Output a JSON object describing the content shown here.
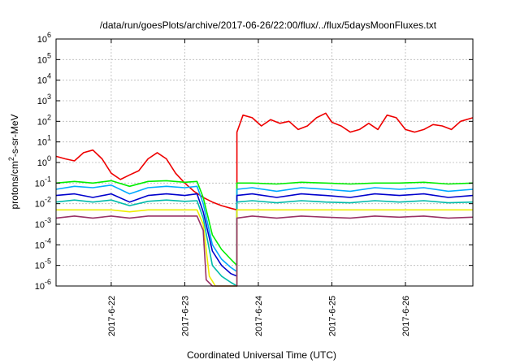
{
  "chart_data": {
    "type": "line",
    "title": "/data/run/goesPlots/archive/2017-06-26/22:00/flux/../flux/5daysMoonFluxes.txt",
    "xlabel": "Coordinated Universal Time (UTC)",
    "ylabel": "protons/cm²-s-sr-MeV",
    "ylabel_parts": {
      "pre": "protons/cm",
      "sup": "2",
      "post": "-s-sr-MeV"
    },
    "yscale": "log",
    "ylim": [
      1e-06,
      1000000.0
    ],
    "yticks": [
      {
        "base": "10",
        "exp": "-6"
      },
      {
        "base": "10",
        "exp": "-5"
      },
      {
        "base": "10",
        "exp": "-4"
      },
      {
        "base": "10",
        "exp": "-3"
      },
      {
        "base": "10",
        "exp": "-2"
      },
      {
        "base": "10",
        "exp": "-1"
      },
      {
        "base": "10",
        "exp": "0"
      },
      {
        "base": "10",
        "exp": "1"
      },
      {
        "base": "10",
        "exp": "2"
      },
      {
        "base": "10",
        "exp": "3"
      },
      {
        "base": "10",
        "exp": "4"
      },
      {
        "base": "10",
        "exp": "5"
      },
      {
        "base": "10",
        "exp": "6"
      }
    ],
    "xlim": [
      "2017-06-21 06:00",
      "2017-06-26 22:00"
    ],
    "xticks": [
      "2017-6-22",
      "2017-6-23",
      "2017-6-24",
      "2017-6-25",
      "2017-6-26"
    ],
    "grid": true,
    "gap": [
      "2017-06-23 17:00",
      "2017-06-23 17:00"
    ],
    "series": [
      {
        "color": "#ee0000",
        "x": [
          "2017-06-21 06:00",
          "2017-06-21 09:00",
          "2017-06-21 12:00",
          "2017-06-21 15:00",
          "2017-06-21 18:00",
          "2017-06-21 21:00",
          "2017-06-22 00:00",
          "2017-06-22 03:00",
          "2017-06-22 06:00",
          "2017-06-22 09:00",
          "2017-06-22 12:00",
          "2017-06-22 15:00",
          "2017-06-22 18:00",
          "2017-06-22 21:00",
          "2017-06-23 00:00",
          "2017-06-23 03:00",
          "2017-06-23 06:00",
          "2017-06-23 09:00",
          "2017-06-23 12:00",
          "2017-06-23 15:00",
          "2017-06-23 17:00",
          "2017-06-23 17:00",
          "2017-06-23 19:00",
          "2017-06-23 22:00",
          "2017-06-24 01:00",
          "2017-06-24 04:00",
          "2017-06-24 07:00",
          "2017-06-24 10:00",
          "2017-06-24 13:00",
          "2017-06-24 16:00",
          "2017-06-24 19:00",
          "2017-06-24 22:00",
          "2017-06-25 00:00",
          "2017-06-25 03:00",
          "2017-06-25 06:00",
          "2017-06-25 09:00",
          "2017-06-25 12:00",
          "2017-06-25 15:00",
          "2017-06-25 18:00",
          "2017-06-25 21:00",
          "2017-06-26 00:00",
          "2017-06-26 03:00",
          "2017-06-26 06:00",
          "2017-06-26 09:00",
          "2017-06-26 12:00",
          "2017-06-26 15:00",
          "2017-06-26 18:00",
          "2017-06-26 22:00"
        ],
        "values": [
          2,
          1.5,
          1.2,
          3,
          4,
          1.5,
          0.3,
          0.15,
          0.25,
          0.4,
          1.5,
          3,
          1.5,
          0.3,
          0.1,
          0.04,
          0.02,
          0.012,
          0.008,
          0.006,
          0.005,
          30,
          200,
          150,
          60,
          120,
          80,
          100,
          40,
          60,
          150,
          250,
          90,
          60,
          30,
          40,
          80,
          40,
          200,
          150,
          40,
          30,
          40,
          70,
          60,
          40,
          100,
          150
        ]
      },
      {
        "color": "#00ee00",
        "x": [
          "2017-06-21 06:00",
          "2017-06-21 12:00",
          "2017-06-21 18:00",
          "2017-06-22 00:00",
          "2017-06-22 06:00",
          "2017-06-22 12:00",
          "2017-06-22 18:00",
          "2017-06-23 00:00",
          "2017-06-23 04:00",
          "2017-06-23 06:00",
          "2017-06-23 09:00",
          "2017-06-23 12:00",
          "2017-06-23 15:00",
          "2017-06-23 17:00",
          "2017-06-23 17:00",
          "2017-06-23 22:00",
          "2017-06-24 06:00",
          "2017-06-24 14:00",
          "2017-06-24 22:00",
          "2017-06-25 06:00",
          "2017-06-25 14:00",
          "2017-06-25 22:00",
          "2017-06-26 06:00",
          "2017-06-26 14:00",
          "2017-06-26 22:00"
        ],
        "values": [
          0.1,
          0.12,
          0.1,
          0.13,
          0.07,
          0.12,
          0.13,
          0.11,
          0.12,
          0.02,
          0.0003,
          6e-05,
          2e-05,
          1e-05,
          0.1,
          0.1,
          0.09,
          0.11,
          0.1,
          0.09,
          0.1,
          0.1,
          0.11,
          0.09,
          0.1
        ]
      },
      {
        "color": "#00aaff",
        "x": [
          "2017-06-21 06:00",
          "2017-06-21 12:00",
          "2017-06-21 18:00",
          "2017-06-22 00:00",
          "2017-06-22 06:00",
          "2017-06-22 12:00",
          "2017-06-22 18:00",
          "2017-06-23 00:00",
          "2017-06-23 04:00",
          "2017-06-23 06:00",
          "2017-06-23 09:00",
          "2017-06-23 12:00",
          "2017-06-23 15:00",
          "2017-06-23 17:00",
          "2017-06-23 17:00",
          "2017-06-23 22:00",
          "2017-06-24 06:00",
          "2017-06-24 14:00",
          "2017-06-24 22:00",
          "2017-06-25 06:00",
          "2017-06-25 14:00",
          "2017-06-25 22:00",
          "2017-06-26 06:00",
          "2017-06-26 14:00",
          "2017-06-26 22:00"
        ],
        "values": [
          0.05,
          0.07,
          0.06,
          0.08,
          0.03,
          0.06,
          0.07,
          0.06,
          0.07,
          0.01,
          0.0001,
          2e-05,
          8e-06,
          5e-06,
          0.05,
          0.06,
          0.04,
          0.06,
          0.05,
          0.04,
          0.06,
          0.05,
          0.06,
          0.04,
          0.05
        ]
      },
      {
        "color": "#0000cc",
        "x": [
          "2017-06-21 06:00",
          "2017-06-21 12:00",
          "2017-06-21 18:00",
          "2017-06-22 00:00",
          "2017-06-22 06:00",
          "2017-06-22 12:00",
          "2017-06-22 18:00",
          "2017-06-23 00:00",
          "2017-06-23 04:00",
          "2017-06-23 06:00",
          "2017-06-23 09:00",
          "2017-06-23 12:00",
          "2017-06-23 15:00",
          "2017-06-23 17:00",
          "2017-06-23 17:00",
          "2017-06-23 22:00",
          "2017-06-24 06:00",
          "2017-06-24 14:00",
          "2017-06-24 22:00",
          "2017-06-25 06:00",
          "2017-06-25 14:00",
          "2017-06-25 22:00",
          "2017-06-26 06:00",
          "2017-06-26 14:00",
          "2017-06-26 22:00"
        ],
        "values": [
          0.025,
          0.03,
          0.02,
          0.03,
          0.012,
          0.025,
          0.03,
          0.025,
          0.03,
          0.004,
          5e-05,
          1e-05,
          4e-06,
          3e-06,
          0.025,
          0.03,
          0.02,
          0.03,
          0.025,
          0.02,
          0.03,
          0.025,
          0.03,
          0.02,
          0.025
        ]
      },
      {
        "color": "#00bbaa",
        "x": [
          "2017-06-21 06:00",
          "2017-06-21 12:00",
          "2017-06-21 18:00",
          "2017-06-22 00:00",
          "2017-06-22 06:00",
          "2017-06-22 12:00",
          "2017-06-22 18:00",
          "2017-06-23 00:00",
          "2017-06-23 04:00",
          "2017-06-23 06:00",
          "2017-06-23 09:00",
          "2017-06-23 12:00",
          "2017-06-23 15:00",
          "2017-06-23 17:00",
          "2017-06-23 17:00",
          "2017-06-23 22:00",
          "2017-06-24 06:00",
          "2017-06-24 14:00",
          "2017-06-24 22:00",
          "2017-06-25 06:00",
          "2017-06-25 14:00",
          "2017-06-25 22:00",
          "2017-06-26 06:00",
          "2017-06-26 14:00",
          "2017-06-26 22:00"
        ],
        "values": [
          0.012,
          0.015,
          0.012,
          0.015,
          0.008,
          0.013,
          0.015,
          0.013,
          0.014,
          0.002,
          1e-05,
          3e-06,
          1.5e-06,
          1e-06,
          0.012,
          0.014,
          0.011,
          0.014,
          0.012,
          0.011,
          0.014,
          0.012,
          0.014,
          0.011,
          0.012
        ]
      },
      {
        "color": "#eeee00",
        "x": [
          "2017-06-21 06:00",
          "2017-06-21 12:00",
          "2017-06-21 18:00",
          "2017-06-22 00:00",
          "2017-06-22 06:00",
          "2017-06-22 12:00",
          "2017-06-22 18:00",
          "2017-06-23 00:00",
          "2017-06-23 04:00",
          "2017-06-23 06:00",
          "2017-06-23 08:00",
          "2017-06-23 10:00",
          "2017-06-23 17:00",
          "2017-06-23 17:00",
          "2017-06-23 22:00",
          "2017-06-24 06:00",
          "2017-06-24 14:00",
          "2017-06-24 22:00",
          "2017-06-25 06:00",
          "2017-06-25 14:00",
          "2017-06-25 22:00",
          "2017-06-26 06:00",
          "2017-06-26 14:00",
          "2017-06-26 22:00"
        ],
        "values": [
          0.005,
          0.005,
          0.005,
          0.005,
          0.004,
          0.005,
          0.005,
          0.005,
          0.005,
          0.001,
          3e-06,
          1e-06,
          1e-06,
          0.005,
          0.005,
          0.005,
          0.005,
          0.005,
          0.005,
          0.005,
          0.005,
          0.005,
          0.005,
          0.005
        ]
      },
      {
        "color": "#993366",
        "x": [
          "2017-06-21 06:00",
          "2017-06-21 12:00",
          "2017-06-21 18:00",
          "2017-06-22 00:00",
          "2017-06-22 06:00",
          "2017-06-22 12:00",
          "2017-06-22 18:00",
          "2017-06-23 00:00",
          "2017-06-23 04:00",
          "2017-06-23 06:00",
          "2017-06-23 07:00",
          "2017-06-23 09:00",
          "2017-06-23 17:00",
          "2017-06-23 17:00",
          "2017-06-23 22:00",
          "2017-06-24 06:00",
          "2017-06-24 14:00",
          "2017-06-24 22:00",
          "2017-06-25 06:00",
          "2017-06-25 14:00",
          "2017-06-25 22:00",
          "2017-06-26 06:00",
          "2017-06-26 14:00",
          "2017-06-26 22:00"
        ],
        "values": [
          0.002,
          0.0025,
          0.002,
          0.0025,
          0.002,
          0.0025,
          0.0025,
          0.0025,
          0.0025,
          0.0005,
          2e-06,
          1e-06,
          1e-06,
          0.002,
          0.0025,
          0.002,
          0.0025,
          0.0022,
          0.002,
          0.0025,
          0.0022,
          0.0025,
          0.002,
          0.0022
        ]
      }
    ]
  }
}
